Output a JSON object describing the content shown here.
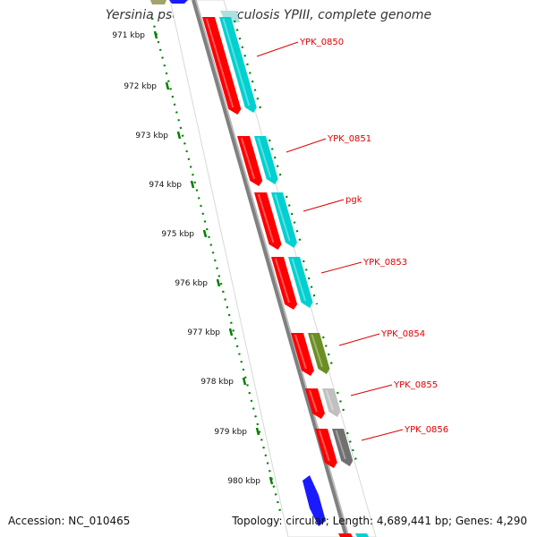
{
  "header": {
    "title": "Yersinia pseudotuberculosis YPIII, complete genome"
  },
  "footer": {
    "accession": "Accession: NC_010465",
    "summary": "Topology: circular; Length: 4,689,441 bp; Genes: 4,290"
  },
  "ticks": [
    {
      "label": "971 kbp"
    },
    {
      "label": "972 kbp"
    },
    {
      "label": "973 kbp"
    },
    {
      "label": "974 kbp"
    },
    {
      "label": "975 kbp"
    },
    {
      "label": "976 kbp"
    },
    {
      "label": "977 kbp"
    },
    {
      "label": "978 kbp"
    },
    {
      "label": "979 kbp"
    },
    {
      "label": "980 kbp"
    }
  ],
  "genes": [
    {
      "name": "YPK_0850",
      "cds_color": "#00d0d0"
    },
    {
      "name": "YPK_0851",
      "cds_color": "#00d0d0"
    },
    {
      "name": "pgk",
      "cds_color": "#00d0d0"
    },
    {
      "name": "YPK_0853",
      "cds_color": "#00d0d0"
    },
    {
      "name": "YPK_0854",
      "cds_color": "#6b8e23"
    },
    {
      "name": "YPK_0855",
      "cds_color": "#c0c0c0"
    },
    {
      "name": "YPK_0856",
      "cds_color": "#707070"
    }
  ],
  "colors": {
    "gene": "#ff0000",
    "ticks": "#008000",
    "labels": "#e00000",
    "backbone": "#888888",
    "other_feature": "#1a1aff"
  }
}
